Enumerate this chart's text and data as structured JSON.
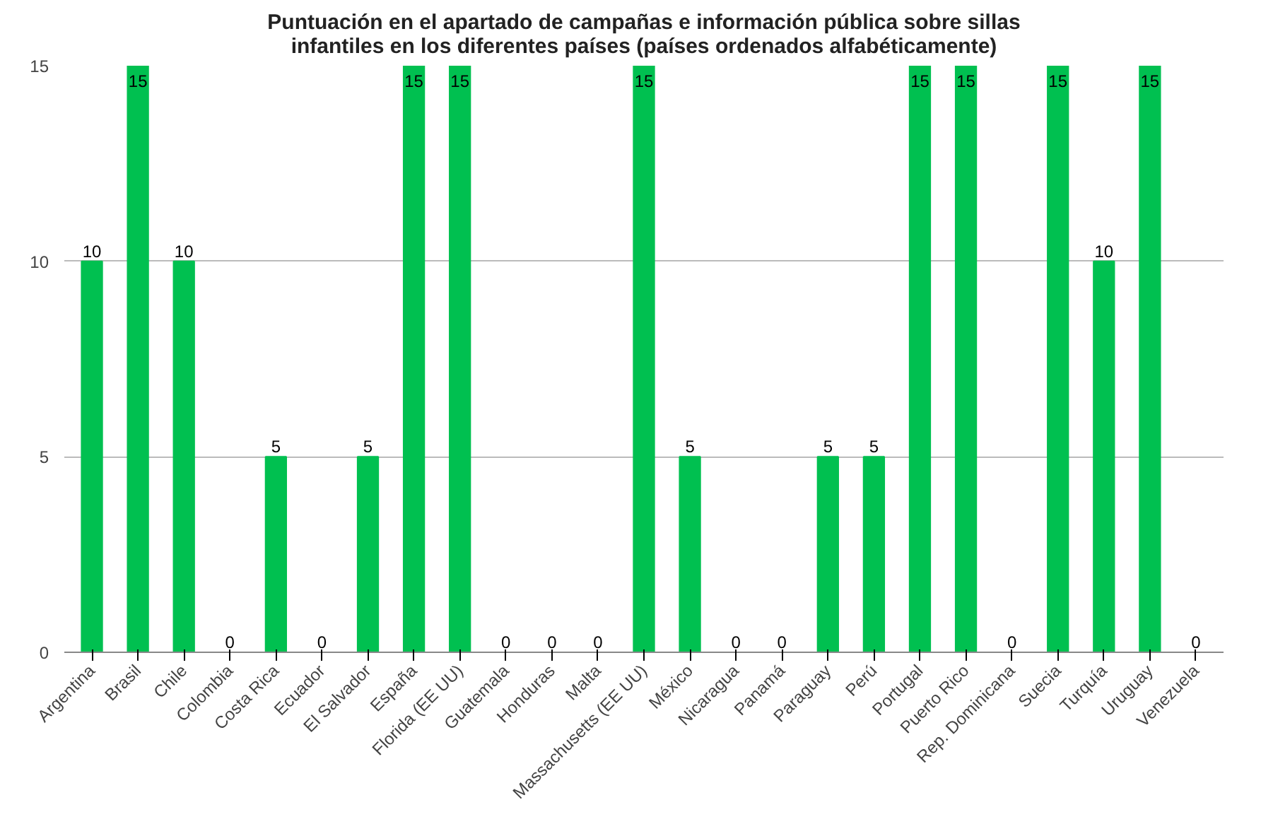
{
  "chart_data": {
    "type": "bar",
    "title": "Puntuación en el apartado de campañas e información pública sobre sillas\ninfantiles en los diferentes países (países ordenados alfabéticamente)",
    "categories": [
      "Argentina",
      "Brasil",
      "Chile",
      "Colombia",
      "Costa Rica",
      "Ecuador",
      "El Salvador",
      "España",
      "Florida (EE UU)",
      "Guatemala",
      "Honduras",
      "Malta",
      "Massachusetts (EE UU)",
      "México",
      "Nicaragua",
      "Panamá",
      "Paraguay",
      "Perú",
      "Portugal",
      "Puerto Rico",
      "Rep. Dominicana",
      "Suecia",
      "Turquía",
      "Uruguay",
      "Venezuela"
    ],
    "values": [
      10,
      15,
      10,
      0,
      5,
      0,
      5,
      15,
      15,
      0,
      0,
      0,
      15,
      5,
      0,
      0,
      5,
      5,
      15,
      15,
      0,
      15,
      10,
      15,
      0
    ],
    "color": "#00c050",
    "ylim": [
      0,
      15
    ],
    "yticks": [
      0,
      5,
      10,
      15
    ],
    "grid": "y",
    "data_labels": true
  }
}
